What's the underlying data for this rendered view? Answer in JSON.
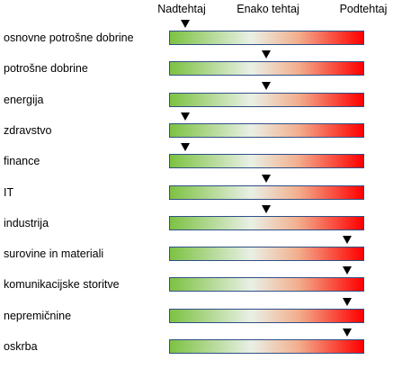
{
  "chart_data": {
    "type": "table",
    "scale_labels": [
      "Nadtehtaj",
      "Enako tehtaj",
      "Podtehtaj"
    ],
    "gradient_colors": [
      "#7dc242",
      "#e9f0e6",
      "#f2b08f",
      "#ff0000"
    ],
    "sectors": [
      {
        "name": "osnovne potrošne dobrine",
        "rating": "Nadtehtaj"
      },
      {
        "name": "potrošne dobrine",
        "rating": "Enako tehtaj"
      },
      {
        "name": "energija",
        "rating": "Enako tehtaj"
      },
      {
        "name": "zdravstvo",
        "rating": "Nadtehtaj"
      },
      {
        "name": "finance",
        "rating": "Nadtehtaj"
      },
      {
        "name": "IT",
        "rating": "Enako tehtaj"
      },
      {
        "name": "industrija",
        "rating": "Enako tehtaj"
      },
      {
        "name": "surovine in materiali",
        "rating": "Podtehtaj"
      },
      {
        "name": "komunikacijske storitve",
        "rating": "Podtehtaj"
      },
      {
        "name": "nepremičnine",
        "rating": "Podtehtaj"
      },
      {
        "name": "oskrba",
        "rating": "Podtehtaj"
      }
    ]
  }
}
